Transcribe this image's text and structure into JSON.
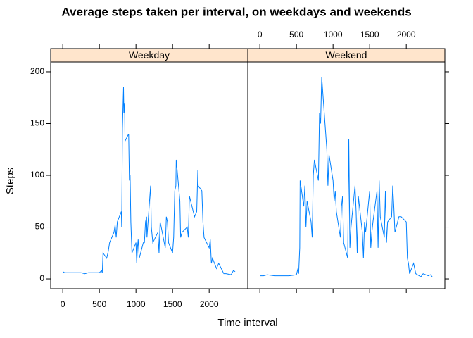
{
  "title": "Average steps taken per interval, on weekdays and weekends",
  "x_label": "Time interval",
  "y_label": "Steps",
  "chart_data": [
    {
      "type": "line",
      "strip": "Weekday",
      "color": "#0080ff",
      "xlim": [
        -165,
        2527
      ],
      "ylim": [
        -9.5,
        209.5
      ],
      "xticks": [
        0,
        500,
        1000,
        1500,
        2000
      ],
      "yticks": [
        0,
        50,
        100,
        150,
        200
      ],
      "x": [
        0,
        25,
        50,
        100,
        150,
        200,
        250,
        300,
        350,
        400,
        450,
        500,
        530,
        540,
        550,
        600,
        620,
        640,
        700,
        715,
        730,
        745,
        800,
        805,
        815,
        830,
        835,
        845,
        850,
        900,
        910,
        920,
        930,
        945,
        1000,
        1010,
        1020,
        1030,
        1045,
        1100,
        1115,
        1130,
        1145,
        1150,
        1200,
        1210,
        1230,
        1300,
        1315,
        1330,
        1345,
        1400,
        1415,
        1430,
        1445,
        1500,
        1515,
        1530,
        1545,
        1550,
        1600,
        1610,
        1630,
        1700,
        1715,
        1730,
        1800,
        1830,
        1845,
        1850,
        1900,
        1915,
        1930,
        2000,
        2015,
        2030,
        2045,
        2100,
        2130,
        2200,
        2230,
        2300,
        2330,
        2355
      ],
      "values": [
        7,
        6,
        6,
        6,
        6,
        6,
        6,
        5,
        6,
        6,
        6,
        6,
        8,
        6,
        25,
        20,
        26,
        35,
        45,
        52,
        40,
        55,
        65,
        50,
        145,
        185,
        160,
        170,
        133,
        140,
        95,
        100,
        55,
        25,
        35,
        15,
        30,
        38,
        20,
        35,
        35,
        55,
        60,
        40,
        90,
        50,
        35,
        45,
        25,
        55,
        50,
        30,
        60,
        55,
        35,
        25,
        40,
        85,
        90,
        115,
        75,
        40,
        45,
        50,
        40,
        80,
        60,
        65,
        105,
        90,
        85,
        55,
        40,
        30,
        38,
        15,
        20,
        10,
        15,
        5,
        5,
        4,
        8,
        7
      ]
    },
    {
      "type": "line",
      "strip": "Weekend",
      "color": "#0080ff",
      "xlim": [
        -165,
        2527
      ],
      "ylim": [
        -9.5,
        209.5
      ],
      "xticks": [
        0,
        500,
        1000,
        1500,
        2000
      ],
      "yticks": [
        0,
        50,
        100,
        150,
        200
      ],
      "x": [
        0,
        50,
        100,
        200,
        300,
        400,
        500,
        520,
        530,
        545,
        550,
        600,
        615,
        630,
        645,
        700,
        715,
        730,
        745,
        800,
        815,
        830,
        845,
        900,
        915,
        930,
        945,
        1000,
        1015,
        1030,
        1045,
        1100,
        1115,
        1130,
        1145,
        1200,
        1215,
        1230,
        1245,
        1300,
        1315,
        1330,
        1345,
        1400,
        1415,
        1430,
        1445,
        1500,
        1515,
        1530,
        1545,
        1600,
        1615,
        1630,
        1645,
        1700,
        1715,
        1730,
        1745,
        1800,
        1815,
        1830,
        1845,
        1900,
        1930,
        2000,
        2015,
        2030,
        2045,
        2100,
        2130,
        2200,
        2230,
        2300,
        2330,
        2355
      ],
      "values": [
        3,
        3,
        4,
        3,
        3,
        3,
        4,
        10,
        5,
        30,
        95,
        70,
        90,
        50,
        75,
        55,
        40,
        100,
        115,
        95,
        160,
        150,
        195,
        140,
        125,
        90,
        120,
        95,
        75,
        85,
        65,
        40,
        70,
        80,
        35,
        20,
        135,
        30,
        50,
        90,
        65,
        25,
        80,
        45,
        20,
        55,
        45,
        85,
        30,
        45,
        55,
        85,
        30,
        95,
        60,
        40,
        85,
        35,
        55,
        60,
        90,
        70,
        45,
        60,
        60,
        55,
        20,
        15,
        5,
        15,
        5,
        2,
        5,
        3,
        4,
        2
      ]
    }
  ]
}
